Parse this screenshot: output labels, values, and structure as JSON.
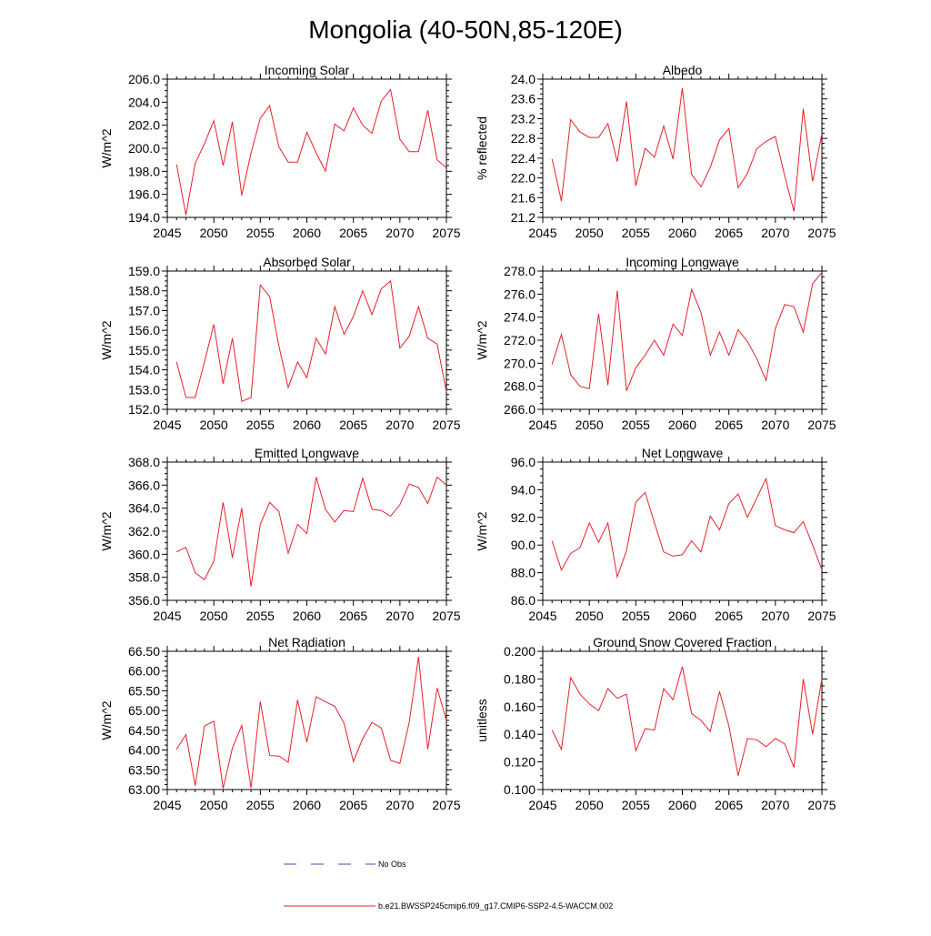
{
  "figure": {
    "title": "Mongolia (40-50N,85-120E)"
  },
  "legend": {
    "items": [
      {
        "label": "No Obs",
        "color": "#4a4aa8",
        "dash": true
      },
      {
        "label": "b.e21.BWSSP245cmip6.f09_g17.CMIP6-SSP2-4.5-WACCM.002",
        "color": "#e8202a",
        "dash": false
      }
    ]
  },
  "chart_data": [
    {
      "type": "line",
      "title": "Incoming Solar",
      "ylabel": "W/m^2",
      "xlim": [
        2045,
        2075
      ],
      "ylim": [
        194.0,
        206.0
      ],
      "yticks": [
        "194.0",
        "196.0",
        "198.0",
        "200.0",
        "202.0",
        "204.0",
        "206.0"
      ],
      "xticks": [
        "2045",
        "2050",
        "2055",
        "2060",
        "2065",
        "2070",
        "2075"
      ],
      "color": "#e8202a",
      "x": [
        2046,
        2047,
        2048,
        2049,
        2050,
        2051,
        2052,
        2053,
        2054,
        2055,
        2056,
        2057,
        2058,
        2059,
        2060,
        2061,
        2062,
        2063,
        2064,
        2065,
        2066,
        2067,
        2068,
        2069,
        2070,
        2071,
        2072,
        2073,
        2074,
        2075
      ],
      "values": [
        198.6,
        194.2,
        198.7,
        200.4,
        202.4,
        198.5,
        202.3,
        195.9,
        199.6,
        202.6,
        203.7,
        200.1,
        198.8,
        198.8,
        201.4,
        199.6,
        198.0,
        202.1,
        201.5,
        203.5,
        202.0,
        201.3,
        204.1,
        205.1,
        200.8,
        199.7,
        199.7,
        203.3,
        199.0,
        198.3
      ]
    },
    {
      "type": "line",
      "title": "Albedo",
      "ylabel": "% reflected",
      "xlim": [
        2045,
        2075
      ],
      "ylim": [
        21.2,
        24.0
      ],
      "yticks": [
        "21.2",
        "21.6",
        "22.0",
        "22.4",
        "22.8",
        "23.2",
        "23.6",
        "24.0"
      ],
      "xticks": [
        "2045",
        "2050",
        "2055",
        "2060",
        "2065",
        "2070",
        "2075"
      ],
      "color": "#e8202a",
      "x": [
        2046,
        2047,
        2048,
        2049,
        2050,
        2051,
        2052,
        2053,
        2054,
        2055,
        2056,
        2057,
        2058,
        2059,
        2060,
        2061,
        2062,
        2063,
        2064,
        2065,
        2066,
        2067,
        2068,
        2069,
        2070,
        2071,
        2072,
        2073,
        2074,
        2075
      ],
      "values": [
        22.38,
        21.53,
        23.18,
        22.93,
        22.82,
        22.82,
        23.1,
        22.33,
        23.55,
        21.84,
        22.6,
        22.42,
        23.05,
        22.38,
        23.82,
        22.07,
        21.82,
        22.21,
        22.77,
        23.0,
        21.8,
        22.09,
        22.59,
        22.74,
        22.84,
        22.04,
        21.32,
        23.4,
        21.93,
        22.9
      ]
    },
    {
      "type": "line",
      "title": "Absorbed Solar",
      "ylabel": "W/m^2",
      "xlim": [
        2045,
        2075
      ],
      "ylim": [
        152.0,
        159.0
      ],
      "yticks": [
        "152.0",
        "153.0",
        "154.0",
        "155.0",
        "156.0",
        "157.0",
        "158.0",
        "159.0"
      ],
      "xticks": [
        "2045",
        "2050",
        "2055",
        "2060",
        "2065",
        "2070",
        "2075"
      ],
      "color": "#e8202a",
      "x": [
        2046,
        2047,
        2048,
        2049,
        2050,
        2051,
        2052,
        2053,
        2054,
        2055,
        2056,
        2057,
        2058,
        2059,
        2060,
        2061,
        2062,
        2063,
        2064,
        2065,
        2066,
        2067,
        2068,
        2069,
        2070,
        2071,
        2072,
        2073,
        2074,
        2075
      ],
      "values": [
        154.4,
        152.6,
        152.6,
        154.4,
        156.3,
        153.3,
        155.6,
        152.4,
        152.6,
        158.3,
        157.7,
        155.2,
        153.1,
        154.4,
        153.6,
        155.6,
        154.8,
        157.2,
        155.8,
        156.7,
        158.0,
        156.8,
        158.1,
        158.5,
        155.1,
        155.7,
        157.2,
        155.6,
        155.3,
        152.9
      ]
    },
    {
      "type": "line",
      "title": "Incoming Longwave",
      "ylabel": "W/m^2",
      "xlim": [
        2045,
        2075
      ],
      "ylim": [
        266.0,
        278.0
      ],
      "yticks": [
        "266.0",
        "268.0",
        "270.0",
        "272.0",
        "274.0",
        "276.0",
        "278.0"
      ],
      "xticks": [
        "2045",
        "2050",
        "2055",
        "2060",
        "2065",
        "2070",
        "2075"
      ],
      "color": "#e8202a",
      "x": [
        2046,
        2047,
        2048,
        2049,
        2050,
        2051,
        2052,
        2053,
        2054,
        2055,
        2056,
        2057,
        2058,
        2059,
        2060,
        2061,
        2062,
        2063,
        2064,
        2065,
        2066,
        2067,
        2068,
        2069,
        2070,
        2071,
        2072,
        2073,
        2074,
        2075
      ],
      "values": [
        269.9,
        272.5,
        269.0,
        268.0,
        267.8,
        274.3,
        268.1,
        276.3,
        267.6,
        269.6,
        270.7,
        272.0,
        270.7,
        273.4,
        272.4,
        276.4,
        274.4,
        270.7,
        272.7,
        270.7,
        272.9,
        271.9,
        270.4,
        268.5,
        273.0,
        275.1,
        274.9,
        272.7,
        276.9,
        277.9
      ]
    },
    {
      "type": "line",
      "title": "Emitted Longwave",
      "ylabel": "W/m^2",
      "xlim": [
        2045,
        2075
      ],
      "ylim": [
        356.0,
        368.0
      ],
      "yticks": [
        "356.0",
        "358.0",
        "360.0",
        "362.0",
        "364.0",
        "366.0",
        "368.0"
      ],
      "xticks": [
        "2045",
        "2050",
        "2055",
        "2060",
        "2065",
        "2070",
        "2075"
      ],
      "color": "#e8202a",
      "x": [
        2046,
        2047,
        2048,
        2049,
        2050,
        2051,
        2052,
        2053,
        2054,
        2055,
        2056,
        2057,
        2058,
        2059,
        2060,
        2061,
        2062,
        2063,
        2064,
        2065,
        2066,
        2067,
        2068,
        2069,
        2070,
        2071,
        2072,
        2073,
        2074,
        2075
      ],
      "values": [
        360.2,
        360.6,
        358.4,
        357.8,
        359.4,
        364.5,
        359.7,
        364.0,
        357.2,
        362.6,
        364.5,
        363.7,
        360.1,
        362.6,
        361.8,
        366.7,
        363.9,
        362.8,
        363.8,
        363.7,
        366.6,
        363.9,
        363.8,
        363.3,
        364.3,
        366.1,
        365.8,
        364.4,
        366.7,
        366.0
      ]
    },
    {
      "type": "line",
      "title": "Net Longwave",
      "ylabel": "W/m^2",
      "xlim": [
        2045,
        2075
      ],
      "ylim": [
        86.0,
        96.0
      ],
      "yticks": [
        "86.0",
        "88.0",
        "90.0",
        "92.0",
        "94.0",
        "96.0"
      ],
      "xticks": [
        "2045",
        "2050",
        "2055",
        "2060",
        "2065",
        "2070",
        "2075"
      ],
      "color": "#e8202a",
      "x": [
        2046,
        2047,
        2048,
        2049,
        2050,
        2051,
        2052,
        2053,
        2054,
        2055,
        2056,
        2057,
        2058,
        2059,
        2060,
        2061,
        2062,
        2063,
        2064,
        2065,
        2066,
        2067,
        2068,
        2069,
        2070,
        2071,
        2072,
        2073,
        2074,
        2075
      ],
      "values": [
        90.3,
        88.2,
        89.4,
        89.8,
        91.6,
        90.2,
        91.6,
        87.7,
        89.6,
        93.1,
        93.8,
        91.6,
        89.5,
        89.2,
        89.3,
        90.3,
        89.5,
        92.1,
        91.1,
        93.0,
        93.7,
        92.0,
        93.4,
        94.8,
        91.4,
        91.1,
        90.9,
        91.7,
        90.0,
        88.2
      ]
    },
    {
      "type": "line",
      "title": "Net Radiation",
      "ylabel": "W/m^2",
      "xlim": [
        2045,
        2075
      ],
      "ylim": [
        63.0,
        66.5
      ],
      "yticks": [
        "63.00",
        "63.50",
        "64.00",
        "64.50",
        "65.00",
        "65.50",
        "66.00",
        "66.50"
      ],
      "xticks": [
        "2045",
        "2050",
        "2055",
        "2060",
        "2065",
        "2070",
        "2075"
      ],
      "color": "#e8202a",
      "x": [
        2046,
        2047,
        2048,
        2049,
        2050,
        2051,
        2052,
        2053,
        2054,
        2055,
        2056,
        2057,
        2058,
        2059,
        2060,
        2061,
        2062,
        2063,
        2064,
        2065,
        2066,
        2067,
        2068,
        2069,
        2070,
        2071,
        2072,
        2073,
        2074,
        2075
      ],
      "values": [
        64.02,
        64.39,
        63.1,
        64.61,
        64.73,
        63.03,
        64.05,
        64.62,
        63.04,
        65.23,
        63.86,
        63.85,
        63.69,
        65.27,
        64.2,
        65.35,
        65.22,
        65.11,
        64.68,
        63.71,
        64.29,
        64.7,
        64.56,
        63.74,
        63.66,
        64.7,
        66.36,
        64.02,
        65.57,
        64.75
      ]
    },
    {
      "type": "line",
      "title": "Ground Snow Covered Fraction",
      "ylabel": "unitless",
      "xlim": [
        2045,
        2075
      ],
      "ylim": [
        0.1,
        0.2
      ],
      "yticks": [
        "0.100",
        "0.120",
        "0.140",
        "0.160",
        "0.180",
        "0.200"
      ],
      "xticks": [
        "2045",
        "2050",
        "2055",
        "2060",
        "2065",
        "2070",
        "2075"
      ],
      "color": "#e8202a",
      "x": [
        2046,
        2047,
        2048,
        2049,
        2050,
        2051,
        2052,
        2053,
        2054,
        2055,
        2056,
        2057,
        2058,
        2059,
        2060,
        2061,
        2062,
        2063,
        2064,
        2065,
        2066,
        2067,
        2068,
        2069,
        2070,
        2071,
        2072,
        2073,
        2074,
        2075
      ],
      "values": [
        0.143,
        0.129,
        0.181,
        0.169,
        0.162,
        0.157,
        0.173,
        0.166,
        0.169,
        0.128,
        0.144,
        0.143,
        0.173,
        0.165,
        0.189,
        0.155,
        0.15,
        0.142,
        0.171,
        0.146,
        0.11,
        0.137,
        0.136,
        0.131,
        0.137,
        0.133,
        0.116,
        0.18,
        0.14,
        0.18
      ]
    }
  ]
}
